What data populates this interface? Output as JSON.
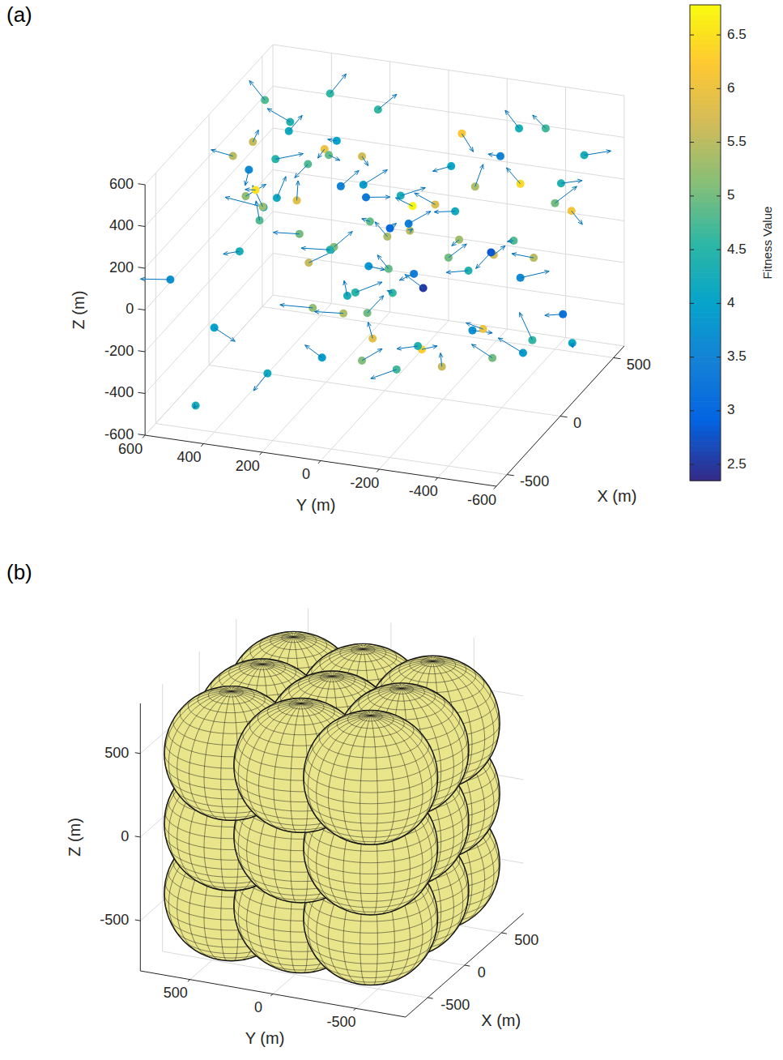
{
  "chart_data": [
    {
      "type": "scatter3d",
      "title": "(a)",
      "xlabel": "X (m)",
      "ylabel": "Y (m)",
      "zlabel": "Z (m)",
      "xlim": [
        -600,
        600
      ],
      "ylim": [
        -600,
        600
      ],
      "zlim": [
        -600,
        600
      ],
      "xticks": [
        -500,
        0,
        500
      ],
      "yticks": [
        -600,
        -400,
        -200,
        0,
        200,
        400,
        600
      ],
      "zticks": [
        -600,
        -400,
        -200,
        0,
        200,
        400,
        600
      ],
      "grid": true,
      "colorbar": {
        "label": "Fitness Value",
        "range": [
          2.35,
          6.78
        ],
        "ticks": [
          2.5,
          3,
          3.5,
          4,
          4.5,
          5,
          5.5,
          6,
          6.5
        ]
      },
      "points": [
        {
          "x": -200,
          "y": 300,
          "z": 560,
          "fitness": 4.5,
          "dx": 40,
          "dy": -80,
          "dz": 20
        },
        {
          "x": -450,
          "y": 250,
          "z": 480,
          "fitness": 3.9,
          "dx": -30,
          "dy": 120,
          "dz": 40
        },
        {
          "x": 350,
          "y": 150,
          "z": 520,
          "fitness": 4.6,
          "dx": 10,
          "dy": -60,
          "dz": 80
        },
        {
          "x": 300,
          "y": -350,
          "z": 560,
          "fitness": 4.3,
          "dx": -20,
          "dy": 40,
          "dz": 90
        },
        {
          "x": 100,
          "y": 500,
          "z": 300,
          "fitness": 3.6,
          "dx": 20,
          "dy": 20,
          "dz": -90
        },
        {
          "x": -500,
          "y": 550,
          "z": 100,
          "fitness": 3.7,
          "dx": -60,
          "dy": 80,
          "dz": 20
        },
        {
          "x": -150,
          "y": 420,
          "z": 330,
          "fitness": 5.2,
          "dx": 80,
          "dy": -40,
          "dz": 20
        },
        {
          "x": -100,
          "y": 380,
          "z": 260,
          "fitness": 5.3,
          "dx": -40,
          "dy": 20,
          "dz": 120
        },
        {
          "x": -50,
          "y": 350,
          "z": 280,
          "fitness": 4.2,
          "dx": 30,
          "dy": -20,
          "dz": 90
        },
        {
          "x": 0,
          "y": 300,
          "z": 250,
          "fitness": 5.9,
          "dx": 40,
          "dy": 10,
          "dz": 70
        },
        {
          "x": 50,
          "y": 280,
          "z": 400,
          "fitness": 4.8,
          "dx": -70,
          "dy": 20,
          "dz": -30
        },
        {
          "x": 150,
          "y": 260,
          "z": 420,
          "fitness": 6.0,
          "dx": 20,
          "dy": 30,
          "dz": -60
        },
        {
          "x": 200,
          "y": 150,
          "z": 380,
          "fitness": 5.7,
          "dx": -80,
          "dy": -50,
          "dz": 10
        },
        {
          "x": 100,
          "y": 100,
          "z": 250,
          "fitness": 3.3,
          "dx": 60,
          "dy": -60,
          "dz": -20
        },
        {
          "x": -250,
          "y": 200,
          "z": 250,
          "fitness": 5.0,
          "dx": -80,
          "dy": 60,
          "dz": 40
        },
        {
          "x": -300,
          "y": 150,
          "z": 150,
          "fitness": 5.6,
          "dx": 30,
          "dy": -80,
          "dz": 60
        },
        {
          "x": -200,
          "y": 100,
          "z": 180,
          "fitness": 5.1,
          "dx": 90,
          "dy": -30,
          "dz": 30
        },
        {
          "x": -100,
          "y": 150,
          "z": 100,
          "fitness": 4.4,
          "dx": -50,
          "dy": 80,
          "dz": 20
        },
        {
          "x": 0,
          "y": 50,
          "z": 200,
          "fitness": 4.9,
          "dx": 60,
          "dy": 50,
          "dz": -30
        },
        {
          "x": 50,
          "y": 0,
          "z": 150,
          "fitness": 3.0,
          "dx": -50,
          "dy": -40,
          "dz": 60
        },
        {
          "x": 100,
          "y": -50,
          "z": 120,
          "fitness": 5.5,
          "dx": 80,
          "dy": 20,
          "dz": -40
        },
        {
          "x": 150,
          "y": 0,
          "z": 250,
          "fitness": 4.3,
          "dx": 40,
          "dy": -70,
          "dz": 30
        },
        {
          "x": 200,
          "y": -100,
          "z": 200,
          "fitness": 5.8,
          "dx": -30,
          "dy": 60,
          "dz": 60
        },
        {
          "x": 250,
          "y": -150,
          "z": 150,
          "fitness": 4.2,
          "dx": -60,
          "dy": 50,
          "dz": 20
        },
        {
          "x": 300,
          "y": -200,
          "z": 250,
          "fitness": 5.4,
          "dx": 20,
          "dy": -20,
          "dz": 100
        },
        {
          "x": 350,
          "y": -100,
          "z": 300,
          "fitness": 4.1,
          "dx": -90,
          "dy": 30,
          "dz": 20
        },
        {
          "x": 400,
          "y": -250,
          "z": 350,
          "fitness": 3.5,
          "dx": 50,
          "dy": 60,
          "dz": -30
        },
        {
          "x": 450,
          "y": -300,
          "z": 200,
          "fitness": 6.4,
          "dx": -20,
          "dy": 40,
          "dz": 80
        },
        {
          "x": 500,
          "y": -400,
          "z": 100,
          "fitness": 5.0,
          "dx": 40,
          "dy": -60,
          "dz": 70
        },
        {
          "x": 420,
          "y": -450,
          "z": 250,
          "fitness": 4.4,
          "dx": 60,
          "dy": -50,
          "dz": -10
        },
        {
          "x": 500,
          "y": -500,
          "z": 350,
          "fitness": 4.3,
          "dx": 30,
          "dy": -80,
          "dz": 20
        },
        {
          "x": 550,
          "y": -350,
          "z": 420,
          "fitness": 4.7,
          "dx": -40,
          "dy": 30,
          "dz": 80
        },
        {
          "x": 380,
          "y": -500,
          "z": 150,
          "fitness": 6.1,
          "dx": 20,
          "dy": -30,
          "dz": -70
        },
        {
          "x": -400,
          "y": 100,
          "z": 0,
          "fitness": 5.2,
          "dx": -60,
          "dy": 90,
          "dz": 30
        },
        {
          "x": -350,
          "y": 0,
          "z": 50,
          "fitness": 4.3,
          "dx": 80,
          "dy": 40,
          "dz": 20
        },
        {
          "x": -300,
          "y": -50,
          "z": -50,
          "fitness": 5.0,
          "dx": 70,
          "dy": -30,
          "dz": 50
        },
        {
          "x": -250,
          "y": 50,
          "z": -100,
          "fitness": 5.4,
          "dx": -50,
          "dy": 80,
          "dz": 20
        },
        {
          "x": -200,
          "y": -100,
          "z": 0,
          "fitness": 4.6,
          "dx": 60,
          "dy": 40,
          "dz": -30
        },
        {
          "x": -150,
          "y": 0,
          "z": 80,
          "fitness": 3.8,
          "dx": -40,
          "dy": -70,
          "dz": 20
        },
        {
          "x": -100,
          "y": -50,
          "z": 50,
          "fitness": 4.9,
          "dx": 60,
          "dy": 60,
          "dz": 20
        },
        {
          "x": -50,
          "y": -150,
          "z": -50,
          "fitness": 2.5,
          "dx": 20,
          "dy": 70,
          "dz": 40
        },
        {
          "x": 0,
          "y": -100,
          "z": -20,
          "fitness": 3.4,
          "dx": -80,
          "dy": 20,
          "dz": 10
        },
        {
          "x": 50,
          "y": -200,
          "z": 50,
          "fitness": 5.0,
          "dx": 60,
          "dy": -40,
          "dz": 40
        },
        {
          "x": 100,
          "y": -250,
          "z": -30,
          "fitness": 4.4,
          "dx": -70,
          "dy": 50,
          "dz": 20
        },
        {
          "x": 150,
          "y": -200,
          "z": 80,
          "fitness": 5.3,
          "dx": 40,
          "dy": 40,
          "dz": -60
        },
        {
          "x": 200,
          "y": -300,
          "z": 0,
          "fitness": 5.7,
          "dx": -30,
          "dy": -50,
          "dz": 70
        },
        {
          "x": 250,
          "y": -350,
          "z": 50,
          "fitness": 4.8,
          "dx": 50,
          "dy": 40,
          "dz": -40
        },
        {
          "x": 300,
          "y": -400,
          "z": -50,
          "fitness": 5.5,
          "dx": -40,
          "dy": 60,
          "dz": 30
        },
        {
          "x": -500,
          "y": 400,
          "z": -100,
          "fitness": 4.0,
          "dx": 30,
          "dy": -60,
          "dz": -70
        },
        {
          "x": -550,
          "y": 200,
          "z": -250,
          "fitness": 4.2,
          "dx": -20,
          "dy": 40,
          "dz": -80
        },
        {
          "x": -450,
          "y": 50,
          "z": -200,
          "fitness": 3.9,
          "dx": 60,
          "dy": 80,
          "dz": 10
        },
        {
          "x": -350,
          "y": -50,
          "z": -250,
          "fitness": 5.1,
          "dx": 80,
          "dy": -40,
          "dz": 20
        },
        {
          "x": -300,
          "y": -150,
          "z": -300,
          "fitness": 4.7,
          "dx": -50,
          "dy": 70,
          "dz": -30
        },
        {
          "x": -250,
          "y": -50,
          "z": -200,
          "fitness": 5.9,
          "dx": 40,
          "dy": 30,
          "dz": 50
        },
        {
          "x": -200,
          "y": -200,
          "z": -250,
          "fitness": 6.3,
          "dx": -20,
          "dy": -60,
          "dz": 40
        },
        {
          "x": -150,
          "y": -250,
          "z": -350,
          "fitness": 5.6,
          "dx": 70,
          "dy": 30,
          "dz": 20
        },
        {
          "x": -100,
          "y": -150,
          "z": -300,
          "fitness": 4.4,
          "dx": -60,
          "dy": 50,
          "dz": 10
        },
        {
          "x": 0,
          "y": -300,
          "z": -250,
          "fitness": 3.7,
          "dx": 50,
          "dy": -50,
          "dz": -30
        },
        {
          "x": 50,
          "y": -350,
          "z": -400,
          "fitness": 5.0,
          "dx": -30,
          "dy": 60,
          "dz": 70
        },
        {
          "x": 100,
          "y": -300,
          "z": -300,
          "fitness": 6.0,
          "dx": 60,
          "dy": 80,
          "dz": -20
        },
        {
          "x": 150,
          "y": -450,
          "z": -350,
          "fitness": 4.6,
          "dx": 100,
          "dy": 80,
          "dz": 60
        },
        {
          "x": 200,
          "y": -400,
          "z": -450,
          "fitness": 3.9,
          "dx": -40,
          "dy": 70,
          "dz": 80
        },
        {
          "x": -400,
          "y": 500,
          "z": -550,
          "fitness": 4.3,
          "dx": 10,
          "dy": 10,
          "dz": -20
        },
        {
          "x": 250,
          "y": -550,
          "z": -400,
          "fitness": 4.1,
          "dx": 60,
          "dy": 20,
          "dz": -60
        },
        {
          "x": 300,
          "y": -500,
          "z": -300,
          "fitness": 3.2,
          "dx": -60,
          "dy": 40,
          "dz": 20
        },
        {
          "x": 450,
          "y": -300,
          "z": -250,
          "fitness": 3.6,
          "dx": 50,
          "dy": -80,
          "dz": 20
        },
        {
          "x": 500,
          "y": 100,
          "z": -100,
          "fitness": 3.4,
          "dx": 70,
          "dy": -50,
          "dz": 30
        },
        {
          "x": 550,
          "y": 350,
          "z": 0,
          "fitness": 3.5,
          "dx": 60,
          "dy": -40,
          "dz": 50
        },
        {
          "x": 350,
          "y": 450,
          "z": 400,
          "fitness": 4.4,
          "dx": -50,
          "dy": 60,
          "dz": 80
        },
        {
          "x": 450,
          "y": 350,
          "z": 500,
          "fitness": 4.6,
          "dx": 40,
          "dy": -40,
          "dz": 80
        },
        {
          "x": 250,
          "y": 500,
          "z": 550,
          "fitness": 4.8,
          "dx": 20,
          "dy": 60,
          "dz": 70
        },
        {
          "x": 0,
          "y": 450,
          "z": 500,
          "fitness": 5.6,
          "dx": -30,
          "dy": -30,
          "dz": 80
        },
        {
          "x": -50,
          "y": 500,
          "z": 450,
          "fitness": 5.5,
          "dx": -40,
          "dy": 60,
          "dz": 40
        },
        {
          "x": 200,
          "y": 400,
          "z": 450,
          "fitness": 4.2,
          "dx": 70,
          "dy": -20,
          "dz": 40
        },
        {
          "x": 100,
          "y": 200,
          "z": 500,
          "fitness": 4.0,
          "dx": 80,
          "dy": 60,
          "dz": -50
        },
        {
          "x": 300,
          "y": 300,
          "z": 300,
          "fitness": 4.9,
          "dx": -60,
          "dy": -60,
          "dz": 20
        },
        {
          "x": -350,
          "y": 300,
          "z": 350,
          "fitness": 4.8,
          "dx": 50,
          "dy": 30,
          "dz": 60
        },
        {
          "x": -250,
          "y": 350,
          "z": 430,
          "fitness": 6.5,
          "dx": 40,
          "dy": 50,
          "dz": -30
        },
        {
          "x": -400,
          "y": 350,
          "z": 220,
          "fitness": 4.3,
          "dx": -70,
          "dy": 30,
          "dz": 20
        },
        {
          "x": 350,
          "y": 200,
          "z": 150,
          "fitness": 3.9,
          "dx": 60,
          "dy": -60,
          "dz": 50
        },
        {
          "x": 400,
          "y": 50,
          "z": 50,
          "fitness": 6.7,
          "dx": -50,
          "dy": 40,
          "dz": 60
        },
        {
          "x": 300,
          "y": 100,
          "z": -50,
          "fitness": 5.4,
          "dx": 50,
          "dy": 60,
          "dz": 30
        },
        {
          "x": 450,
          "y": -100,
          "z": 400,
          "fitness": 6.2,
          "dx": -30,
          "dy": -50,
          "dz": -60
        },
        {
          "x": -100,
          "y": -400,
          "z": 200,
          "fitness": 2.8,
          "dx": -60,
          "dy": 30,
          "dz": -50
        },
        {
          "x": 0,
          "y": 100,
          "z": -150,
          "fitness": 4.5,
          "dx": 60,
          "dy": -70,
          "dz": 30
        }
      ]
    },
    {
      "type": "spheres3d",
      "title": "(b)",
      "xlabel": "X (m)",
      "ylabel": "Y (m)",
      "zlabel": "Z (m)",
      "xlim": [
        -800,
        800
      ],
      "ylim": [
        -800,
        800
      ],
      "zlim": [
        -800,
        800
      ],
      "xticks": [
        -500,
        0,
        500
      ],
      "yticks": [
        -500,
        0,
        500
      ],
      "zticks": [
        -500,
        0,
        500
      ],
      "grid": true,
      "color": "#e9e58a",
      "spheres": [
        {
          "x": -420,
          "y": -420,
          "z": -420,
          "r": 370
        },
        {
          "x": -420,
          "y": -420,
          "z": 0,
          "r": 370
        },
        {
          "x": -420,
          "y": -420,
          "z": 420,
          "r": 370
        },
        {
          "x": -420,
          "y": 0,
          "z": -420,
          "r": 370
        },
        {
          "x": -420,
          "y": 0,
          "z": 0,
          "r": 370
        },
        {
          "x": -420,
          "y": 0,
          "z": 420,
          "r": 370
        },
        {
          "x": -420,
          "y": 420,
          "z": -420,
          "r": 370
        },
        {
          "x": -420,
          "y": 420,
          "z": 0,
          "r": 370
        },
        {
          "x": -420,
          "y": 420,
          "z": 420,
          "r": 370
        },
        {
          "x": 0,
          "y": -420,
          "z": -420,
          "r": 370
        },
        {
          "x": 0,
          "y": -420,
          "z": 0,
          "r": 370
        },
        {
          "x": 0,
          "y": -420,
          "z": 420,
          "r": 370
        },
        {
          "x": 0,
          "y": 0,
          "z": -420,
          "r": 370
        },
        {
          "x": 0,
          "y": 0,
          "z": 0,
          "r": 370
        },
        {
          "x": 0,
          "y": 0,
          "z": 420,
          "r": 370
        },
        {
          "x": 0,
          "y": 420,
          "z": -420,
          "r": 370
        },
        {
          "x": 0,
          "y": 420,
          "z": 0,
          "r": 370
        },
        {
          "x": 0,
          "y": 420,
          "z": 420,
          "r": 370
        },
        {
          "x": 420,
          "y": -420,
          "z": -420,
          "r": 370
        },
        {
          "x": 420,
          "y": -420,
          "z": 0,
          "r": 370
        },
        {
          "x": 420,
          "y": -420,
          "z": 420,
          "r": 370
        },
        {
          "x": 420,
          "y": 0,
          "z": -420,
          "r": 370
        },
        {
          "x": 420,
          "y": 0,
          "z": 0,
          "r": 370
        },
        {
          "x": 420,
          "y": 0,
          "z": 420,
          "r": 370
        },
        {
          "x": 420,
          "y": 420,
          "z": -420,
          "r": 370
        },
        {
          "x": 420,
          "y": 420,
          "z": 0,
          "r": 370
        },
        {
          "x": 420,
          "y": 420,
          "z": 420,
          "r": 370
        }
      ]
    }
  ]
}
